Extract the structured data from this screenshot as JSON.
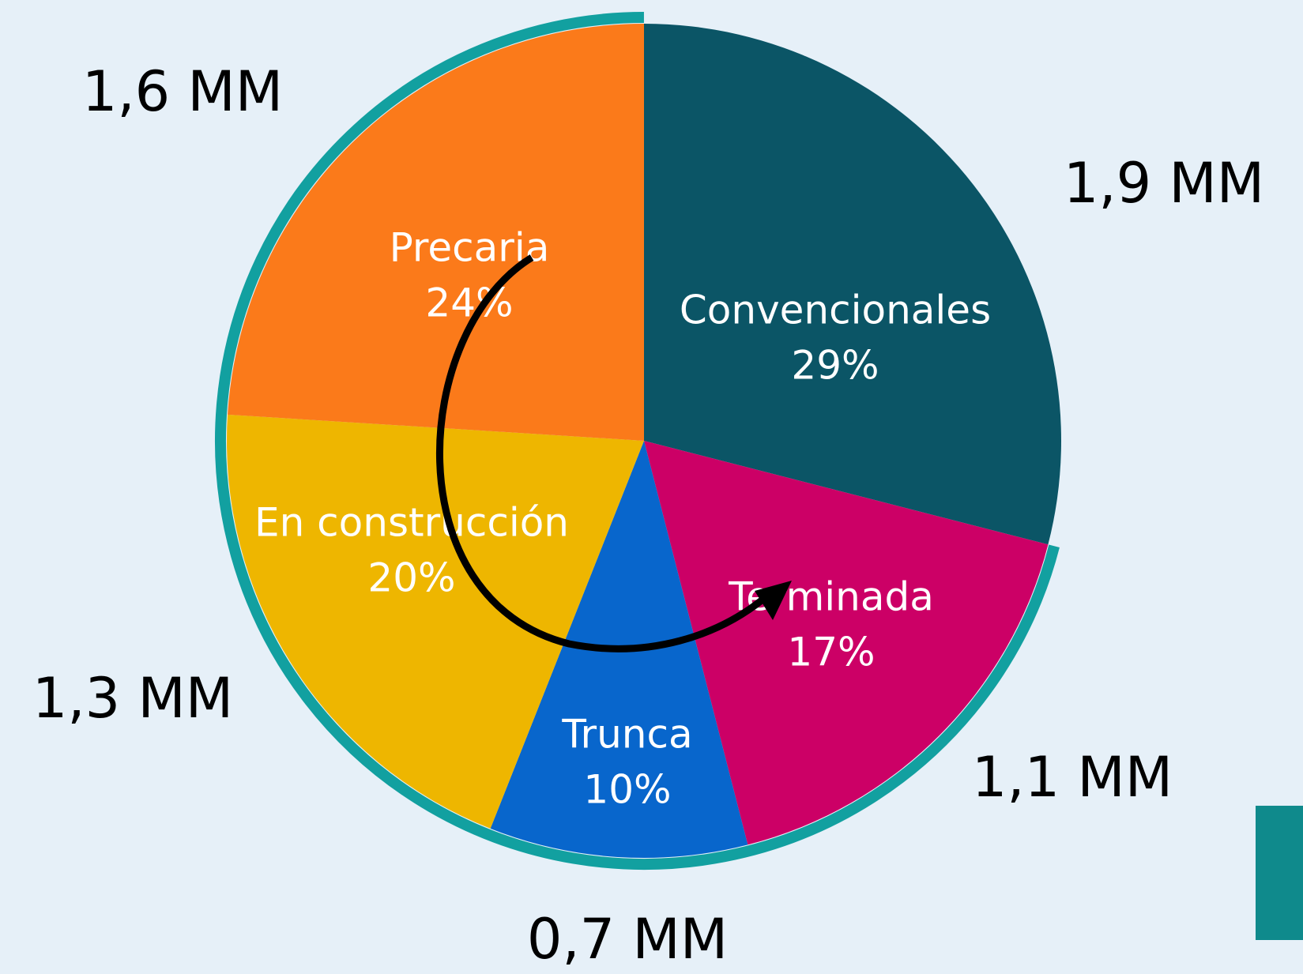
{
  "chart_data": {
    "type": "pie",
    "categories": [
      "Convencionales",
      "Terminada",
      "Trunca",
      "En construcción",
      "Precaria"
    ],
    "values": [
      29,
      17,
      10,
      20,
      24
    ],
    "value_labels": [
      "29%",
      "17%",
      "10%",
      "20%",
      "24%"
    ],
    "outer_labels": [
      "1,9 MM",
      "1,1 MM",
      "0,7 MM",
      "1,3 MM",
      "1,6 MM"
    ],
    "colors": [
      "#0b5566",
      "#cc0066",
      "#0866cc",
      "#eeb600",
      "#fb7a1a"
    ]
  }
}
